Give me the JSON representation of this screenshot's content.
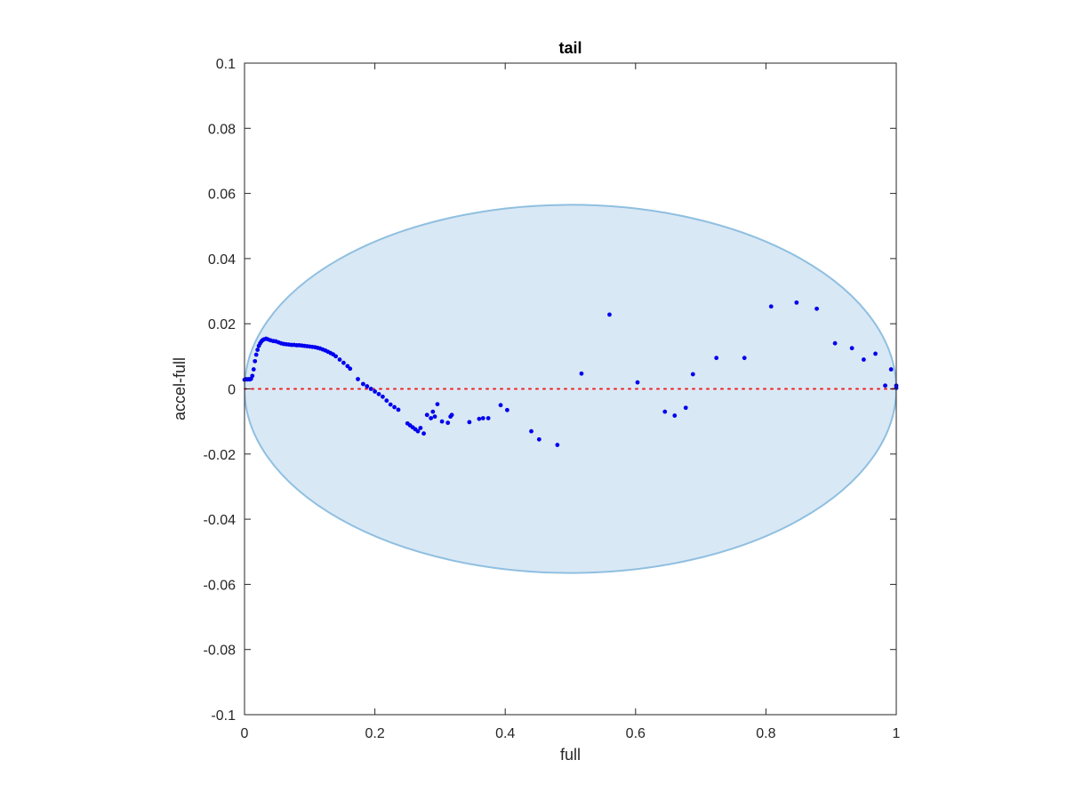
{
  "chart_data": {
    "type": "scatter",
    "title": "tail",
    "xlabel": "full",
    "ylabel": "accel-full",
    "xlim": [
      0,
      1
    ],
    "ylim": [
      -0.1,
      0.1
    ],
    "xticks": [
      0,
      0.2,
      0.4,
      0.6,
      0.8,
      1
    ],
    "xtick_labels": [
      "0",
      "0.2",
      "0.4",
      "0.6",
      "0.8",
      "1"
    ],
    "yticks": [
      -0.1,
      -0.08,
      -0.06,
      -0.04,
      -0.02,
      0,
      0.02,
      0.04,
      0.06,
      0.08,
      0.1
    ],
    "ytick_labels": [
      "-0.1",
      "-0.08",
      "-0.06",
      "-0.04",
      "-0.02",
      "0",
      "0.02",
      "0.04",
      "0.06",
      "0.08",
      "0.1"
    ],
    "grid": false,
    "colors": {
      "points": "#0000ee",
      "ellipse_fill": "#d9e8f5",
      "ellipse_edge": "#8fbfe0",
      "zero_line": "#ee2222",
      "axes": "#262626"
    },
    "ellipse": {
      "center": [
        0.5,
        0
      ],
      "x_semi_axis": 0.5,
      "y_semi_axis": 0.0565
    },
    "zero_line": {
      "y": 0,
      "style": "dotted"
    },
    "points": [
      [
        0.0,
        0.0028
      ],
      [
        0.002,
        0.003
      ],
      [
        0.004,
        0.0029
      ],
      [
        0.006,
        0.003
      ],
      [
        0.008,
        0.0029
      ],
      [
        0.01,
        0.0031
      ],
      [
        0.012,
        0.004
      ],
      [
        0.014,
        0.006
      ],
      [
        0.016,
        0.0085
      ],
      [
        0.018,
        0.0105
      ],
      [
        0.02,
        0.012
      ],
      [
        0.022,
        0.0132
      ],
      [
        0.024,
        0.014
      ],
      [
        0.026,
        0.0146
      ],
      [
        0.028,
        0.015
      ],
      [
        0.03,
        0.0152
      ],
      [
        0.033,
        0.0154
      ],
      [
        0.036,
        0.0152
      ],
      [
        0.04,
        0.0149
      ],
      [
        0.044,
        0.0147
      ],
      [
        0.048,
        0.0146
      ],
      [
        0.052,
        0.0143
      ],
      [
        0.056,
        0.014
      ],
      [
        0.06,
        0.0138
      ],
      [
        0.064,
        0.0137
      ],
      [
        0.068,
        0.0136
      ],
      [
        0.072,
        0.0135
      ],
      [
        0.076,
        0.0135
      ],
      [
        0.08,
        0.0134
      ],
      [
        0.084,
        0.0134
      ],
      [
        0.088,
        0.0133
      ],
      [
        0.092,
        0.0132
      ],
      [
        0.096,
        0.0131
      ],
      [
        0.1,
        0.013
      ],
      [
        0.104,
        0.0129
      ],
      [
        0.108,
        0.0128
      ],
      [
        0.112,
        0.0126
      ],
      [
        0.116,
        0.0124
      ],
      [
        0.12,
        0.0121
      ],
      [
        0.124,
        0.0118
      ],
      [
        0.128,
        0.0114
      ],
      [
        0.132,
        0.011
      ],
      [
        0.136,
        0.0106
      ],
      [
        0.14,
        0.01
      ],
      [
        0.146,
        0.009
      ],
      [
        0.152,
        0.008
      ],
      [
        0.158,
        0.007
      ],
      [
        0.162,
        0.0062
      ],
      [
        0.174,
        0.003
      ],
      [
        0.182,
        0.0015
      ],
      [
        0.188,
        0.0008
      ],
      [
        0.194,
        0.0
      ],
      [
        0.2,
        -0.0008
      ],
      [
        0.206,
        -0.0016
      ],
      [
        0.212,
        -0.0024
      ],
      [
        0.218,
        -0.0036
      ],
      [
        0.224,
        -0.0048
      ],
      [
        0.23,
        -0.0056
      ],
      [
        0.236,
        -0.0064
      ],
      [
        0.25,
        -0.0106
      ],
      [
        0.254,
        -0.0112
      ],
      [
        0.258,
        -0.0118
      ],
      [
        0.262,
        -0.0124
      ],
      [
        0.266,
        -0.013
      ],
      [
        0.27,
        -0.012
      ],
      [
        0.275,
        -0.0137
      ],
      [
        0.28,
        -0.008
      ],
      [
        0.286,
        -0.009
      ],
      [
        0.289,
        -0.007
      ],
      [
        0.292,
        -0.0085
      ],
      [
        0.296,
        -0.0047
      ],
      [
        0.303,
        -0.01
      ],
      [
        0.312,
        -0.0104
      ],
      [
        0.316,
        -0.0085
      ],
      [
        0.318,
        -0.008
      ],
      [
        0.345,
        -0.0102
      ],
      [
        0.36,
        -0.0092
      ],
      [
        0.366,
        -0.009
      ],
      [
        0.374,
        -0.009
      ],
      [
        0.393,
        -0.005
      ],
      [
        0.403,
        -0.0065
      ],
      [
        0.44,
        -0.013
      ],
      [
        0.452,
        -0.0155
      ],
      [
        0.48,
        -0.0172
      ],
      [
        0.517,
        0.0047
      ],
      [
        0.56,
        0.0228
      ],
      [
        0.603,
        0.002
      ],
      [
        0.645,
        -0.007
      ],
      [
        0.66,
        -0.0082
      ],
      [
        0.677,
        -0.0058
      ],
      [
        0.688,
        0.0045
      ],
      [
        0.724,
        0.0095
      ],
      [
        0.767,
        0.0095
      ],
      [
        0.808,
        0.0253
      ],
      [
        0.847,
        0.0265
      ],
      [
        0.878,
        0.0246
      ],
      [
        0.906,
        0.014
      ],
      [
        0.932,
        0.0125
      ],
      [
        0.95,
        0.009
      ],
      [
        0.968,
        0.0108
      ],
      [
        0.983,
        0.001
      ],
      [
        0.992,
        0.006
      ],
      [
        1.0,
        0.001
      ],
      [
        1.0,
        0.0003
      ]
    ]
  }
}
